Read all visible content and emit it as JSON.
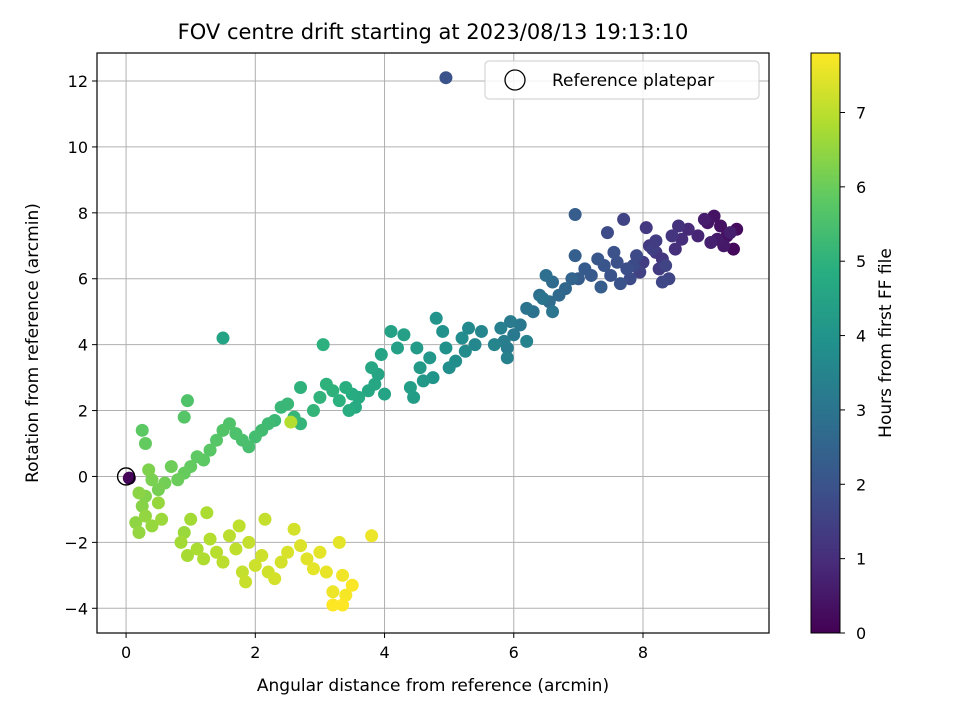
{
  "chart_data": {
    "type": "scatter",
    "title": "FOV centre drift starting at 2023/08/13 19:13:10",
    "xlabel": "Angular distance from reference (arcmin)",
    "ylabel": "Rotation from reference (arcmin)",
    "xlim": [
      -0.45,
      9.95
    ],
    "ylim": [
      -4.75,
      12.85
    ],
    "xticks": [
      0,
      2,
      4,
      6,
      8
    ],
    "yticks": [
      -4,
      -2,
      0,
      2,
      4,
      6,
      8,
      10,
      12
    ],
    "grid": true,
    "colormap": "viridis",
    "colorbar": {
      "label": "Hours from first FF file",
      "range": [
        0,
        7.8
      ],
      "ticks": [
        0,
        1,
        2,
        3,
        4,
        5,
        6,
        7
      ]
    },
    "legend": {
      "position": "top-right",
      "entries": [
        {
          "label": "Reference platepar",
          "marker": "open-circle"
        }
      ]
    },
    "reference_point": {
      "x": 0,
      "y": 0
    },
    "points": [
      [
        9.4,
        6.9,
        0.2
      ],
      [
        9.45,
        7.5,
        0.25
      ],
      [
        9.3,
        7.3,
        0.3
      ],
      [
        9.2,
        7.6,
        0.35
      ],
      [
        9.1,
        7.9,
        0.4
      ],
      [
        9.0,
        7.7,
        0.45
      ],
      [
        9.25,
        7.0,
        0.5
      ],
      [
        9.15,
        7.2,
        0.55
      ],
      [
        8.95,
        7.8,
        0.6
      ],
      [
        9.35,
        7.4,
        0.65
      ],
      [
        9.05,
        7.1,
        0.7
      ],
      [
        8.85,
        7.3,
        0.8
      ],
      [
        8.7,
        7.5,
        0.9
      ],
      [
        8.6,
        7.2,
        1.0
      ],
      [
        8.5,
        6.9,
        1.05
      ],
      [
        8.55,
        7.6,
        1.1
      ],
      [
        8.45,
        7.3,
        1.15
      ],
      [
        8.3,
        6.6,
        1.2
      ],
      [
        8.2,
        6.8,
        1.25
      ],
      [
        8.1,
        7.0,
        1.3
      ],
      [
        8.25,
        6.3,
        1.35
      ],
      [
        8.0,
        6.5,
        1.4
      ],
      [
        8.15,
        6.9,
        1.45
      ],
      [
        7.95,
        6.2,
        1.5
      ],
      [
        8.35,
        6.4,
        1.55
      ],
      [
        8.4,
        6.0,
        1.6
      ],
      [
        8.3,
        5.9,
        1.65
      ],
      [
        7.9,
        6.7,
        1.7
      ],
      [
        7.85,
        6.4,
        1.75
      ],
      [
        7.8,
        6.0,
        1.8
      ],
      [
        7.7,
        7.8,
        1.55
      ],
      [
        7.75,
        6.3,
        1.85
      ],
      [
        7.6,
        6.5,
        1.9
      ],
      [
        7.55,
        6.8,
        1.95
      ],
      [
        7.5,
        6.1,
        2.0
      ],
      [
        7.4,
        6.4,
        2.05
      ],
      [
        7.3,
        6.6,
        2.1
      ],
      [
        7.2,
        6.1,
        2.15
      ],
      [
        7.1,
        6.3,
        2.2
      ],
      [
        7.0,
        6.0,
        2.25
      ],
      [
        6.95,
        7.95,
        2.3
      ],
      [
        6.95,
        6.7,
        2.35
      ],
      [
        7.45,
        7.4,
        1.8
      ],
      [
        8.05,
        7.55,
        1.3
      ],
      [
        8.2,
        7.15,
        1.4
      ],
      [
        7.65,
        5.85,
        2.0
      ],
      [
        7.35,
        5.75,
        2.3
      ],
      [
        6.9,
        6.0,
        2.5
      ],
      [
        6.8,
        5.7,
        2.6
      ],
      [
        6.7,
        5.5,
        2.65
      ],
      [
        6.6,
        5.9,
        2.7
      ],
      [
        6.55,
        5.3,
        2.75
      ],
      [
        6.5,
        6.1,
        2.8
      ],
      [
        6.4,
        5.5,
        2.85
      ],
      [
        6.3,
        5.0,
        2.9
      ],
      [
        6.2,
        5.1,
        2.95
      ],
      [
        6.45,
        5.4,
        3.0
      ],
      [
        6.6,
        5.0,
        3.05
      ],
      [
        6.1,
        4.6,
        3.1
      ],
      [
        6.0,
        4.3,
        3.15
      ],
      [
        5.95,
        4.7,
        3.2
      ],
      [
        5.9,
        3.9,
        3.25
      ],
      [
        5.85,
        4.1,
        3.3
      ],
      [
        5.8,
        4.5,
        3.35
      ],
      [
        5.9,
        3.6,
        3.4
      ],
      [
        6.2,
        4.1,
        3.45
      ],
      [
        5.7,
        4.0,
        3.5
      ],
      [
        5.5,
        4.4,
        3.55
      ],
      [
        5.4,
        4.0,
        3.6
      ],
      [
        5.3,
        4.5,
        3.65
      ],
      [
        5.25,
        3.8,
        3.7
      ],
      [
        5.2,
        4.2,
        3.75
      ],
      [
        5.1,
        3.5,
        3.8
      ],
      [
        5.0,
        3.3,
        3.85
      ],
      [
        4.95,
        3.9,
        3.9
      ],
      [
        4.9,
        4.4,
        3.95
      ],
      [
        4.8,
        4.8,
        4.0
      ],
      [
        4.75,
        3.0,
        4.05
      ],
      [
        4.7,
        3.6,
        4.1
      ],
      [
        4.6,
        2.9,
        4.15
      ],
      [
        4.55,
        3.3,
        4.2
      ],
      [
        4.5,
        3.9,
        4.25
      ],
      [
        4.45,
        2.4,
        4.3
      ],
      [
        4.4,
        2.7,
        4.35
      ],
      [
        4.3,
        4.3,
        4.4
      ],
      [
        4.2,
        3.9,
        4.4
      ],
      [
        4.1,
        4.4,
        4.45
      ],
      [
        4.0,
        2.5,
        4.5
      ],
      [
        3.95,
        3.7,
        4.5
      ],
      [
        3.9,
        3.1,
        4.55
      ],
      [
        3.85,
        2.8,
        4.6
      ],
      [
        3.8,
        3.3,
        4.6
      ],
      [
        3.75,
        2.6,
        4.65
      ],
      [
        3.6,
        2.4,
        4.7
      ],
      [
        3.55,
        2.1,
        4.75
      ],
      [
        3.5,
        2.5,
        4.8
      ],
      [
        3.45,
        2.0,
        4.85
      ],
      [
        3.4,
        2.7,
        4.9
      ],
      [
        3.3,
        2.3,
        4.95
      ],
      [
        3.2,
        2.6,
        5.0
      ],
      [
        3.1,
        2.8,
        5.0
      ],
      [
        3.05,
        4.0,
        4.95
      ],
      [
        3.0,
        2.4,
        5.05
      ],
      [
        2.9,
        2.0,
        5.1
      ],
      [
        2.7,
        1.6,
        5.1
      ],
      [
        2.6,
        1.8,
        5.15
      ],
      [
        2.5,
        2.2,
        5.2
      ],
      [
        2.4,
        2.1,
        5.2
      ],
      [
        2.3,
        1.7,
        5.25
      ],
      [
        2.2,
        1.6,
        5.3
      ],
      [
        2.1,
        1.4,
        5.35
      ],
      [
        2.0,
        1.2,
        5.4
      ],
      [
        1.9,
        0.9,
        5.45
      ],
      [
        1.8,
        1.1,
        5.5
      ],
      [
        1.7,
        1.3,
        5.55
      ],
      [
        1.6,
        1.6,
        5.6
      ],
      [
        1.5,
        1.4,
        5.65
      ],
      [
        1.4,
        1.1,
        5.7
      ],
      [
        1.3,
        0.8,
        5.75
      ],
      [
        1.2,
        0.5,
        5.8
      ],
      [
        1.1,
        0.6,
        5.85
      ],
      [
        1.0,
        0.3,
        5.9
      ],
      [
        0.9,
        0.1,
        5.95
      ],
      [
        0.8,
        -0.1,
        6.0
      ],
      [
        0.7,
        0.3,
        6.05
      ],
      [
        0.6,
        -0.2,
        6.1
      ],
      [
        0.5,
        -0.4,
        6.15
      ],
      [
        0.4,
        -0.1,
        6.2
      ],
      [
        0.35,
        0.2,
        6.25
      ],
      [
        0.3,
        -0.6,
        6.3
      ],
      [
        0.25,
        -0.9,
        6.35
      ],
      [
        0.2,
        -0.5,
        6.4
      ],
      [
        0.15,
        -1.4,
        6.45
      ],
      [
        0.2,
        -1.7,
        6.5
      ],
      [
        0.3,
        -1.2,
        6.5
      ],
      [
        0.4,
        -1.5,
        6.55
      ],
      [
        0.5,
        -0.8,
        6.55
      ],
      [
        0.55,
        -1.3,
        6.6
      ],
      [
        1.5,
        4.2,
        4.5
      ],
      [
        0.95,
        2.3,
        5.6
      ],
      [
        0.9,
        1.8,
        5.7
      ],
      [
        0.25,
        1.4,
        5.8
      ],
      [
        0.3,
        1.0,
        5.9
      ],
      [
        2.7,
        2.7,
        5.0
      ],
      [
        2.55,
        1.65,
        6.9
      ],
      [
        0.9,
        -1.7,
        6.6
      ],
      [
        0.85,
        -2.0,
        6.7
      ],
      [
        0.95,
        -2.4,
        6.75
      ],
      [
        1.0,
        -1.3,
        6.7
      ],
      [
        1.1,
        -2.2,
        6.8
      ],
      [
        1.2,
        -2.5,
        6.85
      ],
      [
        1.25,
        -1.1,
        6.8
      ],
      [
        1.3,
        -1.9,
        6.9
      ],
      [
        1.4,
        -2.3,
        6.95
      ],
      [
        1.5,
        -2.6,
        7.0
      ],
      [
        1.6,
        -1.8,
        7.0
      ],
      [
        1.7,
        -2.2,
        7.05
      ],
      [
        1.75,
        -1.5,
        7.05
      ],
      [
        1.8,
        -2.9,
        7.1
      ],
      [
        1.85,
        -3.2,
        7.15
      ],
      [
        1.9,
        -2.0,
        7.1
      ],
      [
        2.0,
        -2.7,
        7.2
      ],
      [
        2.1,
        -2.4,
        7.2
      ],
      [
        2.15,
        -1.3,
        7.1
      ],
      [
        2.2,
        -2.9,
        7.25
      ],
      [
        2.3,
        -3.1,
        7.3
      ],
      [
        2.4,
        -2.6,
        7.3
      ],
      [
        2.5,
        -2.3,
        7.35
      ],
      [
        2.6,
        -1.6,
        7.3
      ],
      [
        2.7,
        -2.1,
        7.4
      ],
      [
        2.8,
        -2.5,
        7.45
      ],
      [
        2.9,
        -2.8,
        7.5
      ],
      [
        3.0,
        -2.3,
        7.5
      ],
      [
        3.1,
        -2.9,
        7.55
      ],
      [
        3.2,
        -3.5,
        7.6
      ],
      [
        3.3,
        -2.0,
        7.5
      ],
      [
        3.35,
        -3.0,
        7.65
      ],
      [
        3.4,
        -3.6,
        7.7
      ],
      [
        3.5,
        -3.3,
        7.75
      ],
      [
        3.2,
        -3.9,
        7.8
      ],
      [
        3.35,
        -3.9,
        7.8
      ],
      [
        3.8,
        -1.8,
        7.6
      ],
      [
        4.95,
        12.1,
        2.0
      ],
      [
        0.05,
        -0.05,
        0.1
      ]
    ]
  }
}
